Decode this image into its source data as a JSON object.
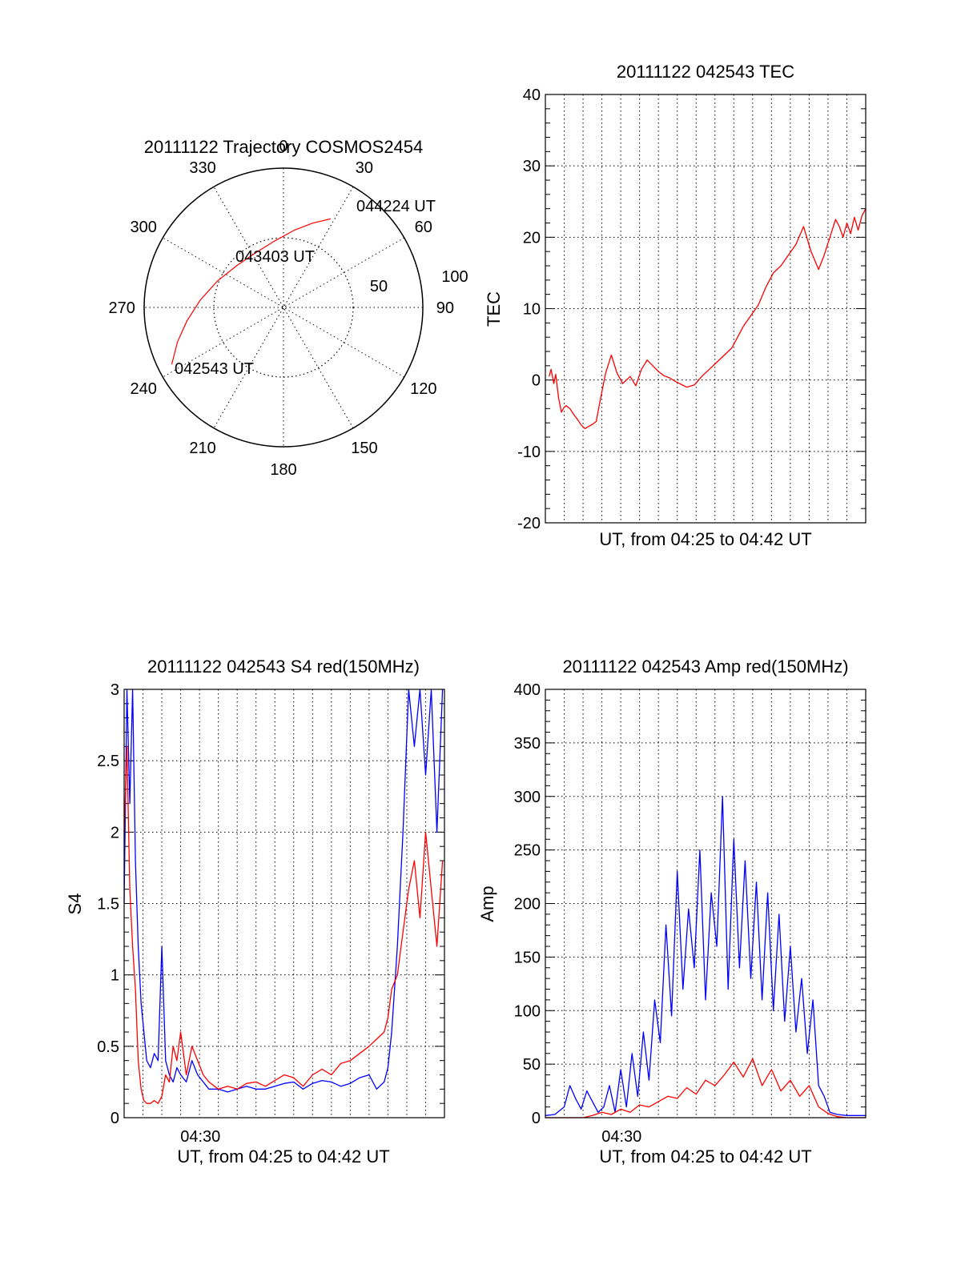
{
  "chart_data": [
    {
      "id": "polar",
      "type": "polar-trajectory",
      "title": "20111122 Trajectory COSMOS2454",
      "azimuth_labels": [
        "0",
        "30",
        "60",
        "90",
        "120",
        "150",
        "180",
        "210",
        "240",
        "270",
        "300",
        "330"
      ],
      "radial_labels": [
        "50",
        "100"
      ],
      "trajectory": [
        {
          "az": 243,
          "r": 90
        },
        {
          "az": 252,
          "r": 80
        },
        {
          "az": 262,
          "r": 70
        },
        {
          "az": 275,
          "r": 60
        },
        {
          "az": 292,
          "r": 51
        },
        {
          "az": 312,
          "r": 45
        },
        {
          "az": 333,
          "r": 44
        },
        {
          "az": 352,
          "r": 48
        },
        {
          "az": 8,
          "r": 56
        },
        {
          "az": 19,
          "r": 64
        },
        {
          "az": 28,
          "r": 72
        }
      ],
      "annotations": [
        {
          "text": "044224 UT",
          "az": 31,
          "r": 76
        },
        {
          "text": "043403 UT",
          "az": 355,
          "r": 33
        },
        {
          "text": "042543 UT",
          "az": 245,
          "r": 80
        }
      ],
      "line_color": "#ff0000"
    },
    {
      "id": "tec",
      "type": "line",
      "title": "20111122 042543 TEC",
      "xlabel": "UT, from 04:25 to 04:42 UT",
      "ylabel": "TEC",
      "xlim": [
        0,
        17
      ],
      "ylim": [
        -20,
        40
      ],
      "yticks": [
        "-20",
        "-10",
        "0",
        "10",
        "20",
        "30",
        "40"
      ],
      "series": [
        {
          "color": "#ff0000",
          "x": [
            0.2,
            0.3,
            0.45,
            0.55,
            0.7,
            0.85,
            1.0,
            1.1,
            1.3,
            1.5,
            1.7,
            1.9,
            2.1,
            2.3,
            2.5,
            2.7,
            2.9,
            3.2,
            3.5,
            3.8,
            4.1,
            4.5,
            4.8,
            5.1,
            5.4,
            5.7,
            6.0,
            6.3,
            6.6,
            6.9,
            7.2,
            7.5,
            7.9,
            8.3,
            8.7,
            9.1,
            9.5,
            9.9,
            10.2,
            10.5,
            10.9,
            11.3,
            11.7,
            12.1,
            12.5,
            12.9,
            13.3,
            13.7,
            14.1,
            14.5,
            14.8,
            15.1,
            15.4,
            15.6,
            15.8,
            16.0,
            16.2,
            16.4,
            16.6,
            16.8,
            17.0
          ],
          "y": [
            0.5,
            1.5,
            -0.5,
            0.8,
            -2.5,
            -4.5,
            -3.8,
            -3.6,
            -4.0,
            -4.8,
            -5.5,
            -6.3,
            -6.8,
            -6.5,
            -6.2,
            -5.8,
            -3.0,
            1.0,
            3.5,
            1.0,
            -0.5,
            0.5,
            -0.8,
            1.5,
            2.8,
            2.0,
            1.2,
            0.6,
            0.3,
            -0.2,
            -0.6,
            -1.0,
            -0.7,
            0.5,
            1.5,
            2.5,
            3.5,
            4.5,
            6.0,
            7.5,
            9.0,
            10.5,
            13.0,
            15.0,
            16.0,
            17.5,
            19.0,
            21.5,
            18.0,
            15.5,
            17.5,
            20.0,
            22.5,
            21.5,
            20.0,
            22.0,
            20.5,
            22.8,
            21.0,
            23.0,
            24.0
          ]
        }
      ]
    },
    {
      "id": "s4",
      "type": "line",
      "title": "20111122 042543 S4 red(150MHz)",
      "xlabel": "UT, from 04:25 to 04:42 UT",
      "ylabel": "S4",
      "xlim": [
        0,
        17
      ],
      "ylim": [
        0,
        3
      ],
      "yticks": [
        "0",
        "0.5",
        "1",
        "1.5",
        "2",
        "2.5",
        "3"
      ],
      "xticks": [
        {
          "x": 4.05,
          "label": "04:30"
        }
      ],
      "series": [
        {
          "name_hidden": "blue",
          "color": "#0000ff",
          "x": [
            0.0,
            0.15,
            0.3,
            0.45,
            0.6,
            0.75,
            0.9,
            1.05,
            1.2,
            1.4,
            1.6,
            1.8,
            2.0,
            2.2,
            2.4,
            2.6,
            2.8,
            3.0,
            3.3,
            3.6,
            3.9,
            4.2,
            4.5,
            5.0,
            5.5,
            6.0,
            6.5,
            7.0,
            7.5,
            8.0,
            8.5,
            9.0,
            9.5,
            10.0,
            10.5,
            11.0,
            11.5,
            12.0,
            12.5,
            13.0,
            13.4,
            13.8,
            14.0,
            14.2,
            14.5,
            14.8,
            15.1,
            15.4,
            15.7,
            16.0,
            16.3,
            16.6,
            16.9
          ],
          "y": [
            1.5,
            3.0,
            2.2,
            3.0,
            1.8,
            1.2,
            0.8,
            0.6,
            0.4,
            0.35,
            0.45,
            0.4,
            1.2,
            0.4,
            0.3,
            0.25,
            0.35,
            0.3,
            0.25,
            0.4,
            0.3,
            0.25,
            0.2,
            0.2,
            0.18,
            0.2,
            0.22,
            0.2,
            0.2,
            0.22,
            0.24,
            0.25,
            0.2,
            0.24,
            0.26,
            0.25,
            0.22,
            0.24,
            0.28,
            0.3,
            0.2,
            0.25,
            0.35,
            0.6,
            1.2,
            2.0,
            3.0,
            2.6,
            3.0,
            2.4,
            3.0,
            2.0,
            3.0
          ]
        },
        {
          "name_hidden": "red",
          "color": "#ff0000",
          "x": [
            0.0,
            0.15,
            0.3,
            0.45,
            0.6,
            0.75,
            0.9,
            1.05,
            1.2,
            1.4,
            1.6,
            1.8,
            2.0,
            2.2,
            2.4,
            2.6,
            2.8,
            3.0,
            3.3,
            3.6,
            3.9,
            4.2,
            4.5,
            5.0,
            5.5,
            6.0,
            6.5,
            7.0,
            7.5,
            8.0,
            8.5,
            9.0,
            9.5,
            10.0,
            10.5,
            11.0,
            11.5,
            12.0,
            12.5,
            13.0,
            13.4,
            13.8,
            14.0,
            14.2,
            14.5,
            14.8,
            15.1,
            15.4,
            15.7,
            16.0,
            16.3,
            16.6,
            16.9
          ],
          "y": [
            2.0,
            2.6,
            1.6,
            1.2,
            0.9,
            0.4,
            0.2,
            0.12,
            0.1,
            0.1,
            0.12,
            0.1,
            0.15,
            0.3,
            0.25,
            0.5,
            0.4,
            0.6,
            0.3,
            0.5,
            0.4,
            0.3,
            0.25,
            0.2,
            0.22,
            0.2,
            0.24,
            0.25,
            0.22,
            0.26,
            0.3,
            0.28,
            0.22,
            0.3,
            0.34,
            0.3,
            0.38,
            0.4,
            0.45,
            0.5,
            0.55,
            0.6,
            0.7,
            0.9,
            1.0,
            1.3,
            1.6,
            1.8,
            1.4,
            2.0,
            1.6,
            1.2,
            1.8
          ]
        }
      ]
    },
    {
      "id": "amp",
      "type": "line",
      "title": "20111122 042543 Amp red(150MHz)",
      "xlabel": "UT, from 04:25 to 04:42 UT",
      "ylabel": "Amp",
      "xlim": [
        0,
        17
      ],
      "ylim": [
        0,
        400
      ],
      "yticks": [
        "0",
        "50",
        "100",
        "150",
        "200",
        "250",
        "300",
        "350",
        "400"
      ],
      "xticks": [
        {
          "x": 4.05,
          "label": "04:30"
        }
      ],
      "series": [
        {
          "name_hidden": "blue",
          "color": "#0000ff",
          "x": [
            0.0,
            0.5,
            1.0,
            1.3,
            1.6,
            1.9,
            2.2,
            2.5,
            2.8,
            3.1,
            3.4,
            3.7,
            4.0,
            4.3,
            4.6,
            4.9,
            5.2,
            5.5,
            5.8,
            6.1,
            6.4,
            6.7,
            7.0,
            7.3,
            7.6,
            7.9,
            8.2,
            8.5,
            8.8,
            9.1,
            9.4,
            9.7,
            10.0,
            10.3,
            10.6,
            10.9,
            11.2,
            11.5,
            11.8,
            12.1,
            12.4,
            12.7,
            13.0,
            13.3,
            13.6,
            13.9,
            14.2,
            14.5,
            14.8,
            15.1,
            15.5,
            16.0,
            16.5,
            17.0
          ],
          "y": [
            2,
            3,
            10,
            30,
            18,
            8,
            25,
            15,
            5,
            10,
            30,
            5,
            45,
            10,
            60,
            20,
            80,
            35,
            110,
            70,
            180,
            95,
            230,
            120,
            195,
            140,
            250,
            110,
            210,
            160,
            300,
            120,
            260,
            140,
            240,
            130,
            220,
            110,
            210,
            100,
            190,
            90,
            160,
            80,
            130,
            60,
            110,
            30,
            20,
            5,
            3,
            2,
            2,
            2
          ]
        },
        {
          "name_hidden": "red",
          "color": "#ff0000",
          "x": [
            0.0,
            1.0,
            2.0,
            2.5,
            3.0,
            3.5,
            4.0,
            4.5,
            5.0,
            5.5,
            6.0,
            6.5,
            7.0,
            7.5,
            8.0,
            8.5,
            9.0,
            9.5,
            10.0,
            10.5,
            11.0,
            11.5,
            12.0,
            12.5,
            13.0,
            13.5,
            14.0,
            14.5,
            15.0,
            15.5,
            16.0,
            17.0
          ],
          "y": [
            0,
            0,
            0,
            2,
            5,
            3,
            8,
            5,
            12,
            10,
            15,
            20,
            18,
            28,
            22,
            35,
            30,
            40,
            52,
            38,
            55,
            30,
            45,
            25,
            35,
            20,
            30,
            10,
            4,
            1,
            0,
            0
          ]
        }
      ]
    }
  ]
}
